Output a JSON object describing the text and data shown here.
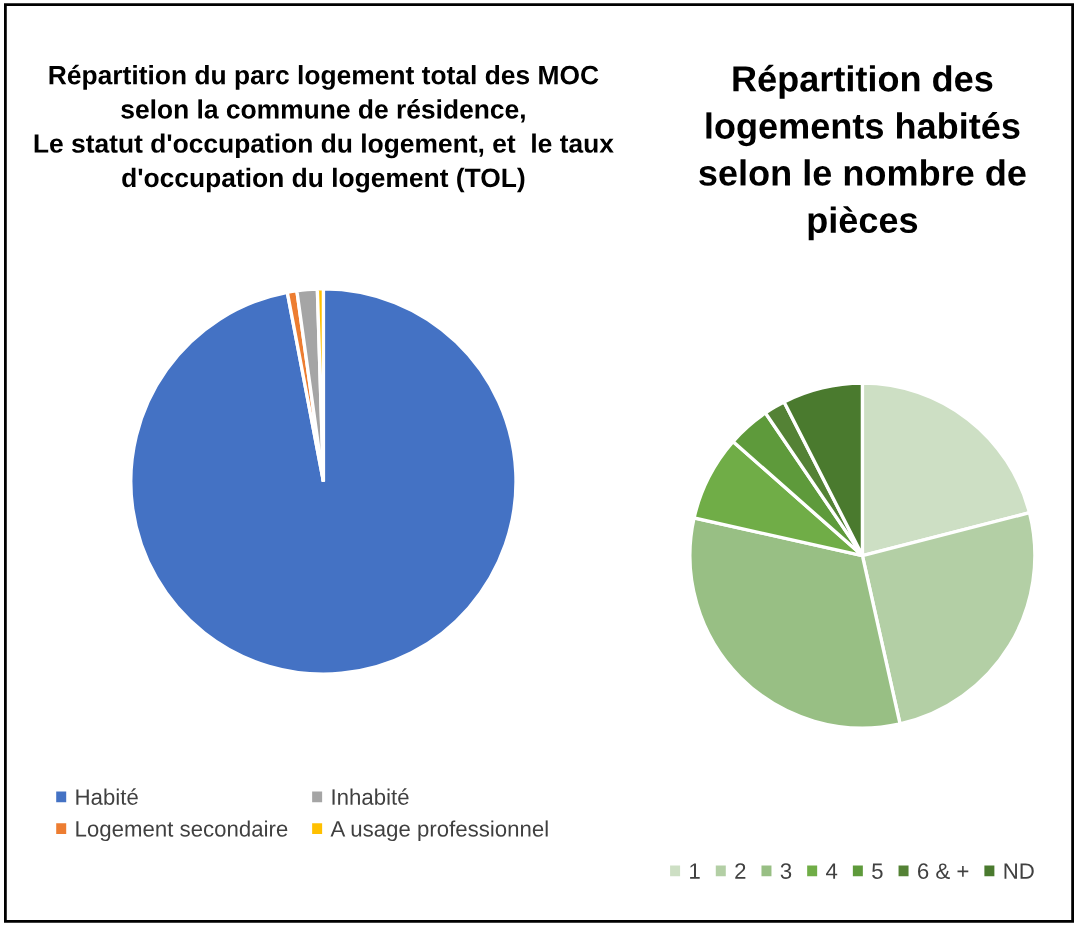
{
  "chart_data": [
    {
      "type": "pie",
      "title": "Répartition du parc logement total des MOC\nselon la commune de résidence,\nLe statut d'occupation du logement, et  le taux\nd'occupation du logement (TOL)",
      "categories": [
        "Habité",
        "Logement secondaire",
        "Inhabité",
        "A usage professionnel"
      ],
      "values": [
        97,
        0.8,
        1.7,
        0.5
      ],
      "colors": [
        "#4472c4",
        "#ed7d31",
        "#a5a5a5",
        "#ffc000"
      ],
      "legend": "bottom"
    },
    {
      "type": "pie",
      "title": "Répartition des\nlogements habités\nselon le nombre de\npièces",
      "categories": [
        "1",
        "2",
        "3",
        "4",
        "5",
        "6 & +",
        "ND"
      ],
      "values": [
        21,
        25.5,
        32,
        8,
        4,
        2,
        7.5
      ],
      "colors": [
        "#cddfc4",
        "#b3cfa5",
        "#98bf84",
        "#70ad47",
        "#5e9a3b",
        "#548235",
        "#4a7a2e"
      ],
      "legend": "bottom"
    }
  ]
}
